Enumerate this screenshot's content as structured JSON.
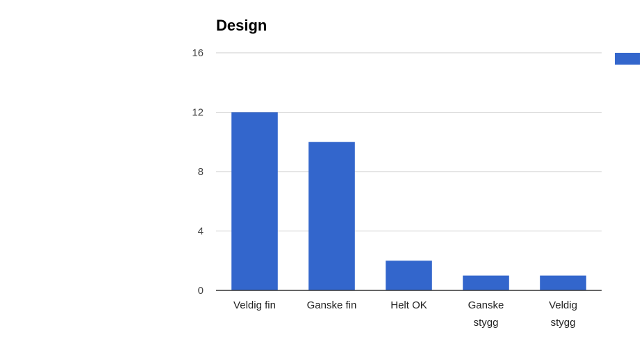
{
  "chart_data": {
    "type": "bar",
    "title": "Design",
    "categories": [
      "Veldig fin",
      "Ganske fin",
      "Helt OK",
      "Ganske stygg",
      "Veldig stygg"
    ],
    "values": [
      12,
      10,
      2,
      1,
      1
    ],
    "ylim": [
      0,
      16
    ],
    "yticks": [
      0,
      4,
      8,
      12,
      16
    ],
    "grid": true,
    "legend": {
      "placement": "right",
      "entries": [
        ""
      ]
    },
    "colors": {
      "bar": "#3366cc"
    }
  }
}
